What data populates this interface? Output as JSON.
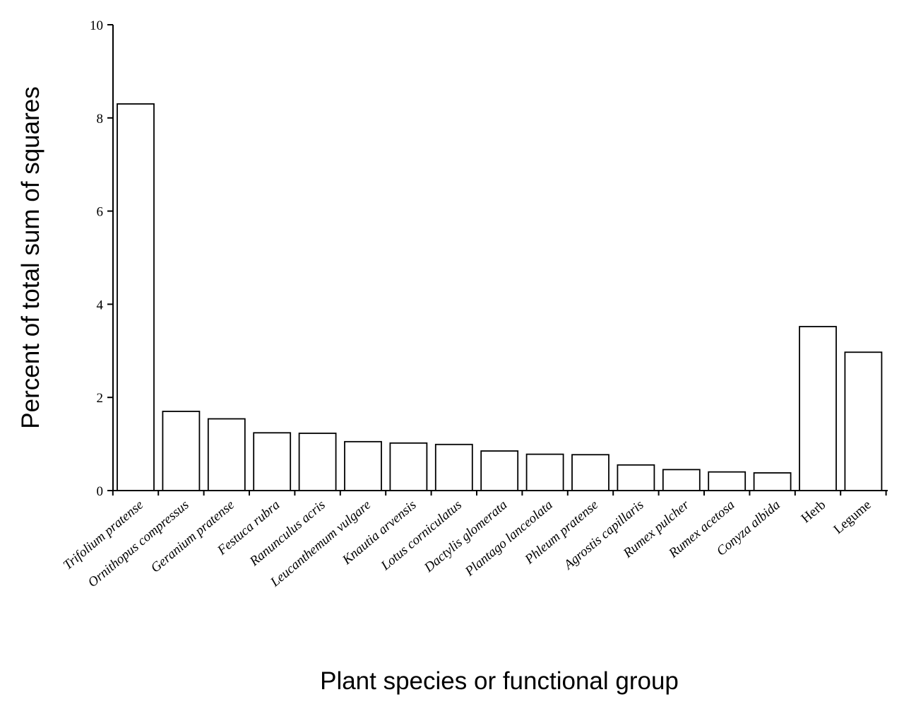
{
  "chart_data": {
    "type": "bar",
    "title": "",
    "xlabel": "Plant species or functional group",
    "ylabel": "Percent of total sum of squares",
    "ylim": [
      0,
      10
    ],
    "yticks": [
      0,
      2,
      4,
      6,
      8,
      10
    ],
    "grid": false,
    "legend": "none",
    "categories": [
      "Trifolium pratense",
      "Ornithopus compressus",
      "Geranium pratense",
      "Festuca rubra",
      "Ranunculus acris",
      "Leucanthemum vulgare",
      "Knautia arvensis",
      "Lotus corniculatus",
      "Dactylis glomerata",
      "Plantago lanceolata",
      "Phleum pratense",
      "Agrostis capillaris",
      "Rumex pulcher",
      "Rumex acetosa",
      "Conyza albida",
      "Herb",
      "Legume"
    ],
    "italic": [
      true,
      true,
      true,
      true,
      true,
      true,
      true,
      true,
      true,
      true,
      true,
      true,
      true,
      true,
      true,
      false,
      false
    ],
    "values": [
      8.3,
      1.7,
      1.54,
      1.24,
      1.23,
      1.05,
      1.02,
      0.99,
      0.85,
      0.78,
      0.77,
      0.55,
      0.45,
      0.4,
      0.38,
      3.52,
      2.97
    ],
    "colors": {
      "bar_fill": "#ffffff",
      "bar_stroke": "#000000"
    }
  }
}
